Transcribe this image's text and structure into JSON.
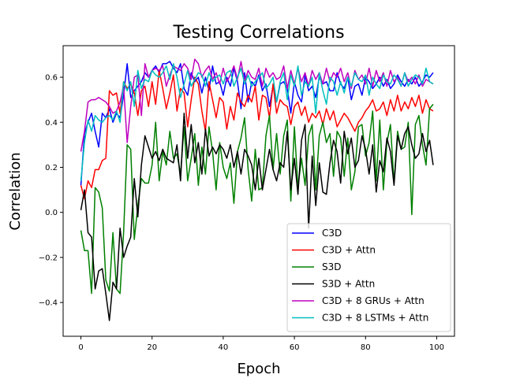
{
  "chart_data": {
    "type": "line",
    "title": "Testing Correlations",
    "xlabel": "Epoch",
    "ylabel": "Correlation",
    "xlim": [
      -5,
      105
    ],
    "ylim": [
      -0.55,
      0.74
    ],
    "xticks": [
      "0",
      "20",
      "40",
      "60",
      "80",
      "100"
    ],
    "yticks": [
      "−0.4",
      "−0.2",
      "0.0",
      "0.2",
      "0.4",
      "0.6"
    ],
    "legend_position": "lower-right",
    "grid": false,
    "series": [
      {
        "name": "C3D",
        "color": "#0000ff",
        "values": [
          0.12,
          0.35,
          0.4,
          0.44,
          0.36,
          0.29,
          0.44,
          0.42,
          0.46,
          0.4,
          0.44,
          0.42,
          0.52,
          0.66,
          0.51,
          0.54,
          0.56,
          0.58,
          0.62,
          0.6,
          0.63,
          0.65,
          0.62,
          0.66,
          0.66,
          0.67,
          0.64,
          0.62,
          0.66,
          0.55,
          0.52,
          0.62,
          0.58,
          0.6,
          0.53,
          0.6,
          0.54,
          0.65,
          0.57,
          0.58,
          0.52,
          0.6,
          0.56,
          0.64,
          0.58,
          0.46,
          0.62,
          0.49,
          0.58,
          0.56,
          0.61,
          0.54,
          0.57,
          0.47,
          0.56,
          0.49,
          0.57,
          0.58,
          0.55,
          0.44,
          0.58,
          0.52,
          0.49,
          0.61,
          0.54,
          0.56,
          0.51,
          0.6,
          0.57,
          0.58,
          0.54,
          0.54,
          0.62,
          0.57,
          0.55,
          0.6,
          0.5,
          0.56,
          0.57,
          0.52,
          0.6,
          0.58,
          0.55,
          0.57,
          0.6,
          0.56,
          0.59,
          0.55,
          0.57,
          0.61,
          0.58,
          0.56,
          0.59,
          0.57,
          0.6,
          0.56,
          0.58,
          0.61,
          0.6,
          0.62
        ]
      },
      {
        "name": "C3D + Attn",
        "color": "#ff0000",
        "values": [
          0.12,
          0.06,
          0.14,
          0.11,
          0.19,
          0.19,
          0.23,
          0.24,
          0.54,
          0.52,
          0.53,
          0.44,
          0.58,
          0.55,
          0.57,
          0.53,
          0.43,
          0.54,
          0.56,
          0.47,
          0.58,
          0.48,
          0.63,
          0.55,
          0.46,
          0.53,
          0.61,
          0.45,
          0.55,
          0.53,
          0.38,
          0.5,
          0.6,
          0.57,
          0.45,
          0.36,
          0.58,
          0.5,
          0.42,
          0.51,
          0.49,
          0.37,
          0.47,
          0.41,
          0.53,
          0.49,
          0.47,
          0.52,
          0.49,
          0.56,
          0.41,
          0.52,
          0.51,
          0.42,
          0.57,
          0.44,
          0.5,
          0.48,
          0.47,
          0.39,
          0.47,
          0.49,
          0.43,
          0.47,
          0.4,
          0.44,
          0.42,
          0.45,
          0.39,
          0.46,
          0.41,
          0.45,
          0.38,
          0.41,
          0.44,
          0.42,
          0.39,
          0.36,
          0.4,
          0.42,
          0.45,
          0.47,
          0.5,
          0.45,
          0.46,
          0.49,
          0.43,
          0.5,
          0.45,
          0.52,
          0.45,
          0.49,
          0.46,
          0.51,
          0.47,
          0.52,
          0.44,
          0.5,
          0.46,
          0.45
        ]
      },
      {
        "name": "S3D",
        "color": "#008000",
        "values": [
          -0.08,
          -0.17,
          -0.17,
          -0.36,
          0.11,
          0.09,
          0.02,
          -0.3,
          -0.35,
          -0.09,
          -0.34,
          -0.36,
          -0.09,
          0.3,
          0.28,
          -0.12,
          0.03,
          0.15,
          0.13,
          0.13,
          0.21,
          0.4,
          0.14,
          0.27,
          0.21,
          0.36,
          0.24,
          0.26,
          0.17,
          0.38,
          0.14,
          0.24,
          0.35,
          0.12,
          0.29,
          0.17,
          0.38,
          0.27,
          0.1,
          0.31,
          0.2,
          0.15,
          0.22,
          0.04,
          0.27,
          0.33,
          0.42,
          0.19,
          0.05,
          0.28,
          0.1,
          0.11,
          0.34,
          0.43,
          0.19,
          0.35,
          0.17,
          0.34,
          0.41,
          0.05,
          0.38,
          0.11,
          0.24,
          0.12,
          0.34,
          0.39,
          0.1,
          0.34,
          0.4,
          0.31,
          0.35,
          0.16,
          0.36,
          0.33,
          0.16,
          0.33,
          0.1,
          0.18,
          0.38,
          0.39,
          0.25,
          0.31,
          0.45,
          0.14,
          0.41,
          0.1,
          0.31,
          0.39,
          0.13,
          0.36,
          0.28,
          0.29,
          0.4,
          -0.01,
          0.39,
          0.43,
          0.3,
          0.21,
          0.46,
          0.48
        ]
      },
      {
        "name": "S3D + Attn",
        "color": "#000000",
        "values": [
          0.01,
          0.1,
          -0.09,
          -0.11,
          -0.34,
          -0.26,
          -0.25,
          -0.36,
          -0.48,
          -0.31,
          -0.34,
          -0.07,
          -0.2,
          -0.15,
          -0.11,
          0.15,
          -0.02,
          0.21,
          0.34,
          0.29,
          0.24,
          0.27,
          0.23,
          0.28,
          0.24,
          0.23,
          0.22,
          0.3,
          0.14,
          0.44,
          0.24,
          0.39,
          0.22,
          0.31,
          0.17,
          0.37,
          0.25,
          0.29,
          0.26,
          0.3,
          0.28,
          0.24,
          0.3,
          0.2,
          0.27,
          0.17,
          0.28,
          0.25,
          0.21,
          0.1,
          0.24,
          0.1,
          0.19,
          0.28,
          0.19,
          0.14,
          0.22,
          0.2,
          0.36,
          0.1,
          0.24,
          0.08,
          0.32,
          0.39,
          -0.07,
          0.25,
          0.03,
          0.22,
          0.09,
          0.08,
          0.22,
          0.32,
          0.27,
          0.13,
          0.36,
          0.26,
          0.33,
          0.2,
          0.23,
          0.34,
          0.28,
          0.17,
          0.3,
          0.09,
          0.23,
          0.18,
          0.33,
          0.27,
          0.12,
          0.34,
          0.28,
          0.35,
          0.38,
          0.3,
          0.24,
          0.26,
          0.35,
          0.27,
          0.32,
          0.21
        ]
      },
      {
        "name": "C3D + 8 GRUs + Attn",
        "color": "#bf00bf",
        "values": [
          0.27,
          0.36,
          0.49,
          0.5,
          0.5,
          0.51,
          0.5,
          0.49,
          0.47,
          0.44,
          0.45,
          0.49,
          0.56,
          0.31,
          0.47,
          0.6,
          0.61,
          0.43,
          0.66,
          0.6,
          0.63,
          0.64,
          0.63,
          0.65,
          0.56,
          0.61,
          0.65,
          0.64,
          0.63,
          0.66,
          0.64,
          0.59,
          0.68,
          0.66,
          0.6,
          0.63,
          0.65,
          0.59,
          0.62,
          0.57,
          0.64,
          0.58,
          0.61,
          0.65,
          0.59,
          0.67,
          0.58,
          0.63,
          0.6,
          0.59,
          0.64,
          0.56,
          0.64,
          0.6,
          0.62,
          0.59,
          0.6,
          0.65,
          0.55,
          0.63,
          0.57,
          0.64,
          0.58,
          0.62,
          0.56,
          0.63,
          0.59,
          0.62,
          0.57,
          0.64,
          0.58,
          0.62,
          0.6,
          0.64,
          0.58,
          0.62,
          0.55,
          0.63,
          0.59,
          0.61,
          0.57,
          0.64,
          0.56,
          0.63,
          0.58,
          0.62,
          0.56,
          0.63,
          0.58,
          0.6,
          0.56,
          0.62,
          0.58,
          0.6,
          0.57,
          0.61,
          0.56,
          0.59,
          0.58,
          0.57
        ]
      },
      {
        "name": "C3D + 8 LSTMs + Attn",
        "color": "#00bfbf",
        "values": [
          0.14,
          0.31,
          0.41,
          0.36,
          0.43,
          0.41,
          0.4,
          0.42,
          0.43,
          0.41,
          0.45,
          0.4,
          0.58,
          0.54,
          0.58,
          0.47,
          0.63,
          0.55,
          0.59,
          0.58,
          0.63,
          0.61,
          0.6,
          0.62,
          0.65,
          0.59,
          0.66,
          0.6,
          0.51,
          0.57,
          0.63,
          0.56,
          0.59,
          0.62,
          0.61,
          0.56,
          0.62,
          0.58,
          0.6,
          0.61,
          0.57,
          0.62,
          0.63,
          0.56,
          0.6,
          0.64,
          0.57,
          0.61,
          0.56,
          0.58,
          0.6,
          0.62,
          0.55,
          0.57,
          0.6,
          0.49,
          0.58,
          0.62,
          0.5,
          0.61,
          0.56,
          0.65,
          0.52,
          0.58,
          0.56,
          0.6,
          0.44,
          0.62,
          0.54,
          0.48,
          0.6,
          0.58,
          0.52,
          0.58,
          0.53,
          0.6,
          0.56,
          0.62,
          0.59,
          0.58,
          0.61,
          0.52,
          0.6,
          0.57,
          0.55,
          0.61,
          0.58,
          0.57,
          0.61,
          0.59,
          0.56,
          0.62,
          0.56,
          0.59,
          0.61,
          0.6,
          0.57,
          0.64,
          0.58,
          0.57
        ]
      }
    ]
  }
}
